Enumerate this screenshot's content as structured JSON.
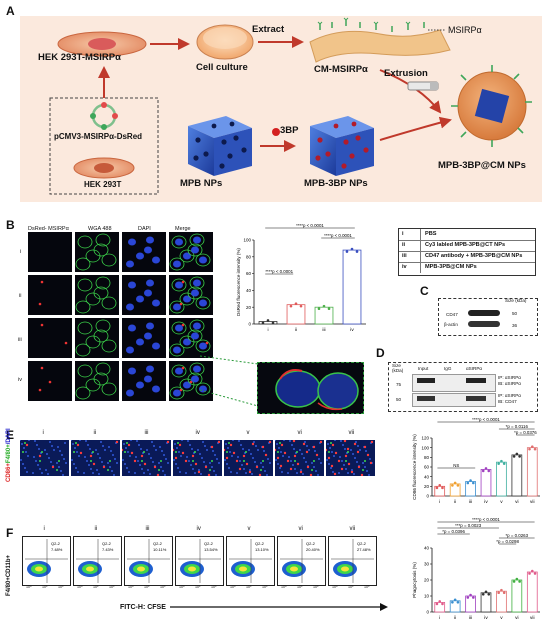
{
  "panelA": {
    "letter": "A",
    "hek_label": "HEK 293T-MSIRPα",
    "plasmid_label": "pCMV3-MSIRPα-DsRed",
    "hek293t_label": "HEK 293T",
    "culture_label": "Cell culture",
    "extract_label": "Extract",
    "membrane_label": "CM-MSIRPα",
    "msirpa_label": "MSIRPα",
    "extrusion_label": "Extrusion",
    "final_label": "MPB-3BP@CM NPs",
    "mpb_label": "MPB NPs",
    "drug_label": "3BP",
    "mpb3bp_label": "MPB-3BP NPs"
  },
  "panelB": {
    "letter": "B",
    "col_headers": [
      "DsRed- MSIRPα",
      "WGA 488",
      "DAPI",
      "Merge"
    ],
    "row_labels": [
      "i",
      "ii",
      "iii",
      "iv"
    ],
    "legend": [
      {
        "num": "i",
        "text": "PBS"
      },
      {
        "num": "ii",
        "text": "Cy3 labled MPB-3PB@CT NPs"
      },
      {
        "num": "iii",
        "text": "CD47 antibody + MPB-3PB@CM NPs"
      },
      {
        "num": "iv",
        "text": "MPB-3PB@CM NPs"
      }
    ]
  },
  "panelC": {
    "letter": "C",
    "size_label": "Size (kDa)",
    "bands": [
      "CD47",
      "β-actin"
    ],
    "markers": [
      "50",
      "36"
    ]
  },
  "panelD": {
    "letter": "D",
    "size_label": "Size (kDa)",
    "lanes": [
      "Input",
      "IgG",
      "αSIRPα"
    ],
    "markers": [
      "75",
      "50"
    ],
    "ip_labels": [
      "IP: αSIRPα",
      "IB: αSIRPα",
      "IP: αSIRPα",
      "IB: CD47"
    ]
  },
  "panelE": {
    "letter": "E",
    "ylabel_parts": [
      "CD86",
      "+",
      "F4/80",
      "+",
      "/DAPI"
    ],
    "col_labels": [
      "i",
      "ii",
      "iii",
      "iv",
      "v",
      "vi",
      "vii"
    ]
  },
  "panelF": {
    "letter": "F",
    "ylabel": "F4/80+CD11b+",
    "xlabel": "FITC-H: CFSE",
    "col_labels": [
      "i",
      "ii",
      "iii",
      "iv",
      "v",
      "vi",
      "vii"
    ],
    "q2_label": "Q2-2",
    "q2_values": [
      "7.48%",
      "7.43%",
      "10.11%",
      "13.54%",
      "13.10%",
      "20.40%",
      "27.48%"
    ],
    "tick_labels": [
      "10⁴",
      "10⁵",
      "10⁶"
    ]
  },
  "chart_data": [
    {
      "type": "bar",
      "ylabel": "DsRed fluorescence intensity (%)",
      "categories": [
        "i",
        "ii",
        "iii",
        "iv"
      ],
      "values": [
        3,
        23,
        20,
        88
      ],
      "ylim": [
        0,
        100
      ],
      "yticks": [
        "0",
        "20",
        "40",
        "60",
        "80",
        "100"
      ],
      "annotations": [
        "****p < 0.0001",
        "****p < 0.0001",
        "****p < 0.0001"
      ],
      "colors": [
        "#333333",
        "#e05a5a",
        "#4daf4a",
        "#3a4fc0"
      ]
    },
    {
      "type": "bar",
      "ylabel": "CD86 fluorescence intensity (%)",
      "categories": [
        "i",
        "ii",
        "iii",
        "iv",
        "v",
        "vi",
        "vii"
      ],
      "values": [
        20,
        25,
        30,
        55,
        70,
        85,
        100
      ],
      "ylim": [
        0,
        120
      ],
      "yticks": [
        "0",
        "20",
        "40",
        "60",
        "80",
        "100",
        "120"
      ],
      "annotations": [
        "****p < 0.0001",
        "*p = 0.0116",
        "*p = 0.0376",
        "NS"
      ],
      "colors": [
        "#e05a5a",
        "#f0a030",
        "#3a8fd0",
        "#a040c0",
        "#40b0a0",
        "#333333",
        "#e07070"
      ]
    },
    {
      "type": "bar",
      "ylabel": "Phagocytosis (%)",
      "categories": [
        "i",
        "ii",
        "iii",
        "iv",
        "v",
        "vi",
        "vii"
      ],
      "values": [
        6,
        7,
        10,
        12,
        13,
        20,
        25
      ],
      "ylim": [
        0,
        40
      ],
      "yticks": [
        "0",
        "10",
        "20",
        "30",
        "40"
      ],
      "annotations": [
        "****p < 0.0001",
        "***p = 0.0023",
        "*p = 0.0396",
        "*p = 0.0298",
        "*p = 0.0263"
      ],
      "colors": [
        "#e05a8a",
        "#3a8fd0",
        "#a040c0",
        "#333333",
        "#e07070",
        "#40b040",
        "#e05a8a"
      ]
    }
  ]
}
